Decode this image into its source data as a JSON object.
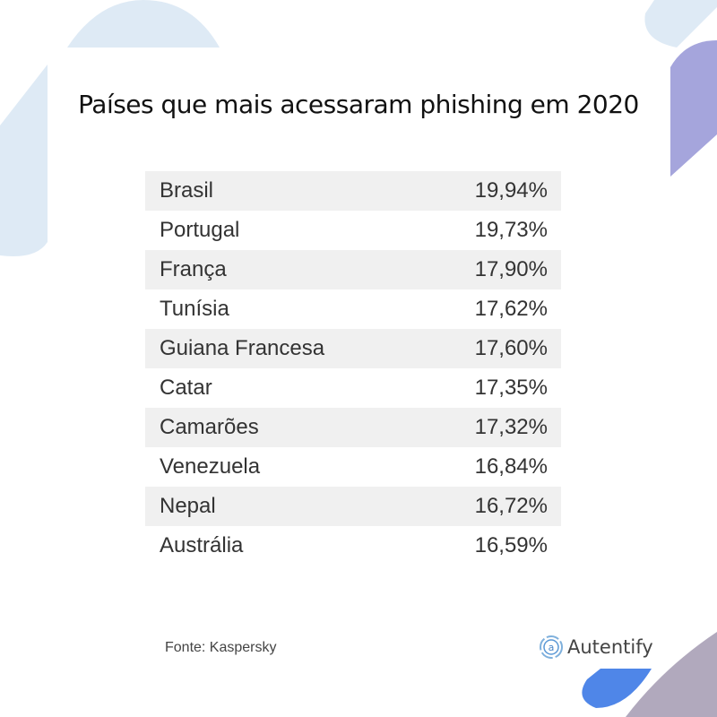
{
  "chart_data": {
    "type": "table",
    "title": "Países que mais acessaram phishing em 2020",
    "rows": [
      {
        "country": "Brasil",
        "value": "19,94%"
      },
      {
        "country": "Portugal",
        "value": "19,73%"
      },
      {
        "country": "França",
        "value": "17,90%"
      },
      {
        "country": "Tunísia",
        "value": "17,62%"
      },
      {
        "country": "Guiana Francesa",
        "value": "17,60%"
      },
      {
        "country": "Catar",
        "value": "17,35%"
      },
      {
        "country": "Camarões",
        "value": "17,32%"
      },
      {
        "country": "Venezuela",
        "value": "16,84%"
      },
      {
        "country": "Nepal",
        "value": "16,72%"
      },
      {
        "country": "Austrália",
        "value": "16,59%"
      }
    ]
  },
  "footer": {
    "source": "Fonte: Kaspersky",
    "brand": "Autentify"
  },
  "colors": {
    "light_blue": "#deeaf5",
    "purple": "#a5a5dc",
    "mauve": "#b1a9bd",
    "blue": "#4f86e8",
    "row_shade": "#f0f0f0"
  }
}
